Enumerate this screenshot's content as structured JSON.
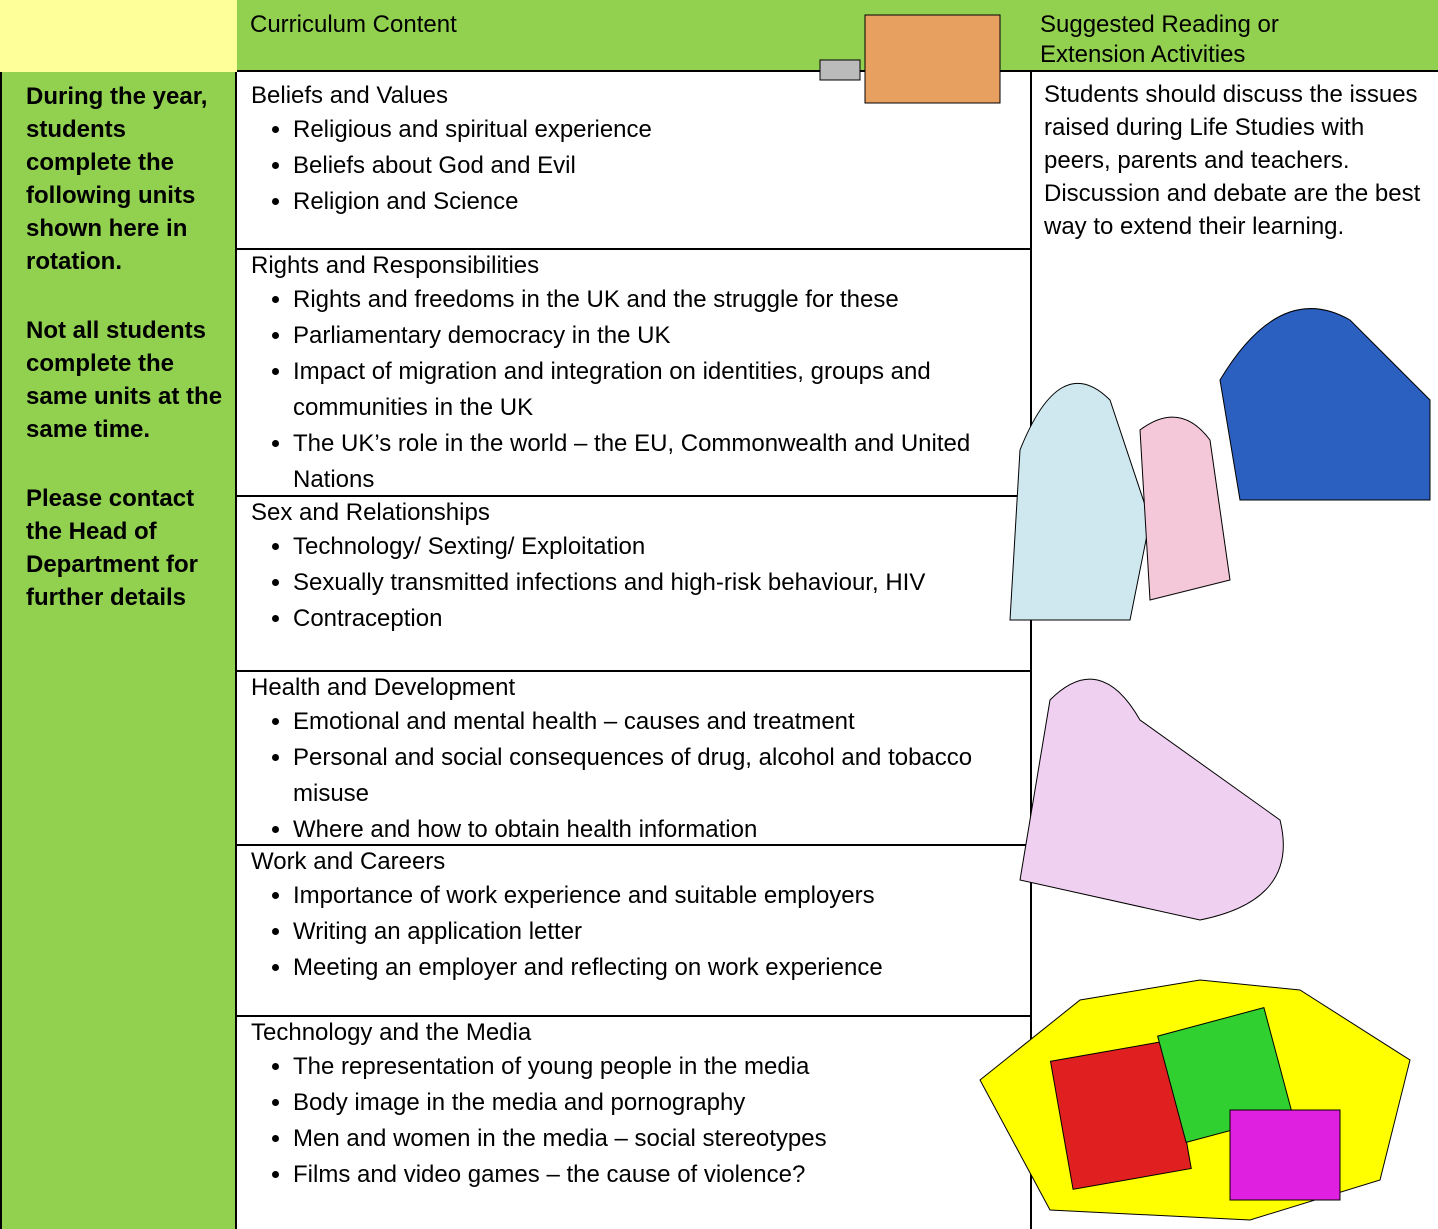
{
  "header": {
    "columns": [
      "Curriculum Content",
      "Suggested Reading or Extension Activities"
    ]
  },
  "left_note": [
    "During the year, students complete the following units shown here in rotation.",
    "Not all students complete the same units at the same time.",
    "Please contact the Head of Department for further details"
  ],
  "units": [
    {
      "title": "Beliefs and Values",
      "items": [
        "Religious and spiritual experience",
        "Beliefs about God and Evil",
        "Religion and Science"
      ]
    },
    {
      "title": "Rights and Responsibilities",
      "items": [
        "Rights and freedoms in the UK and the struggle for these",
        "Parliamentary democracy in the UK",
        "Impact of migration and integration on identities, groups and communities in the UK",
        "The UK’s role in the world – the EU, Commonwealth and United Nations"
      ]
    },
    {
      "title": "Sex and Relationships",
      "items": [
        "Technology/ Sexting/ Exploitation",
        "Sexually transmitted infections and high-risk behaviour, HIV",
        "Contraception"
      ]
    },
    {
      "title": "Health and Development",
      "items": [
        "Emotional and mental health – causes and treatment",
        "Personal and social consequences of drug, alcohol and tobacco misuse",
        "Where and how to obtain health information"
      ]
    },
    {
      "title": "Work and Careers",
      "items": [
        "Importance of work experience and suitable employers",
        "Writing an application letter",
        "Meeting an employer and reflecting on work experience"
      ]
    },
    {
      "title": "Technology and the Media",
      "items": [
        "The representation of young people in the media",
        "Body image in the media and pornography",
        "Men and women in the media – social stereotypes",
        "Films and video games – the cause of violence?"
      ]
    }
  ],
  "right_text": "Students should discuss the issues raised during Life Studies with peers, parents and teachers. Discussion and debate are the best way to extend their learning."
}
